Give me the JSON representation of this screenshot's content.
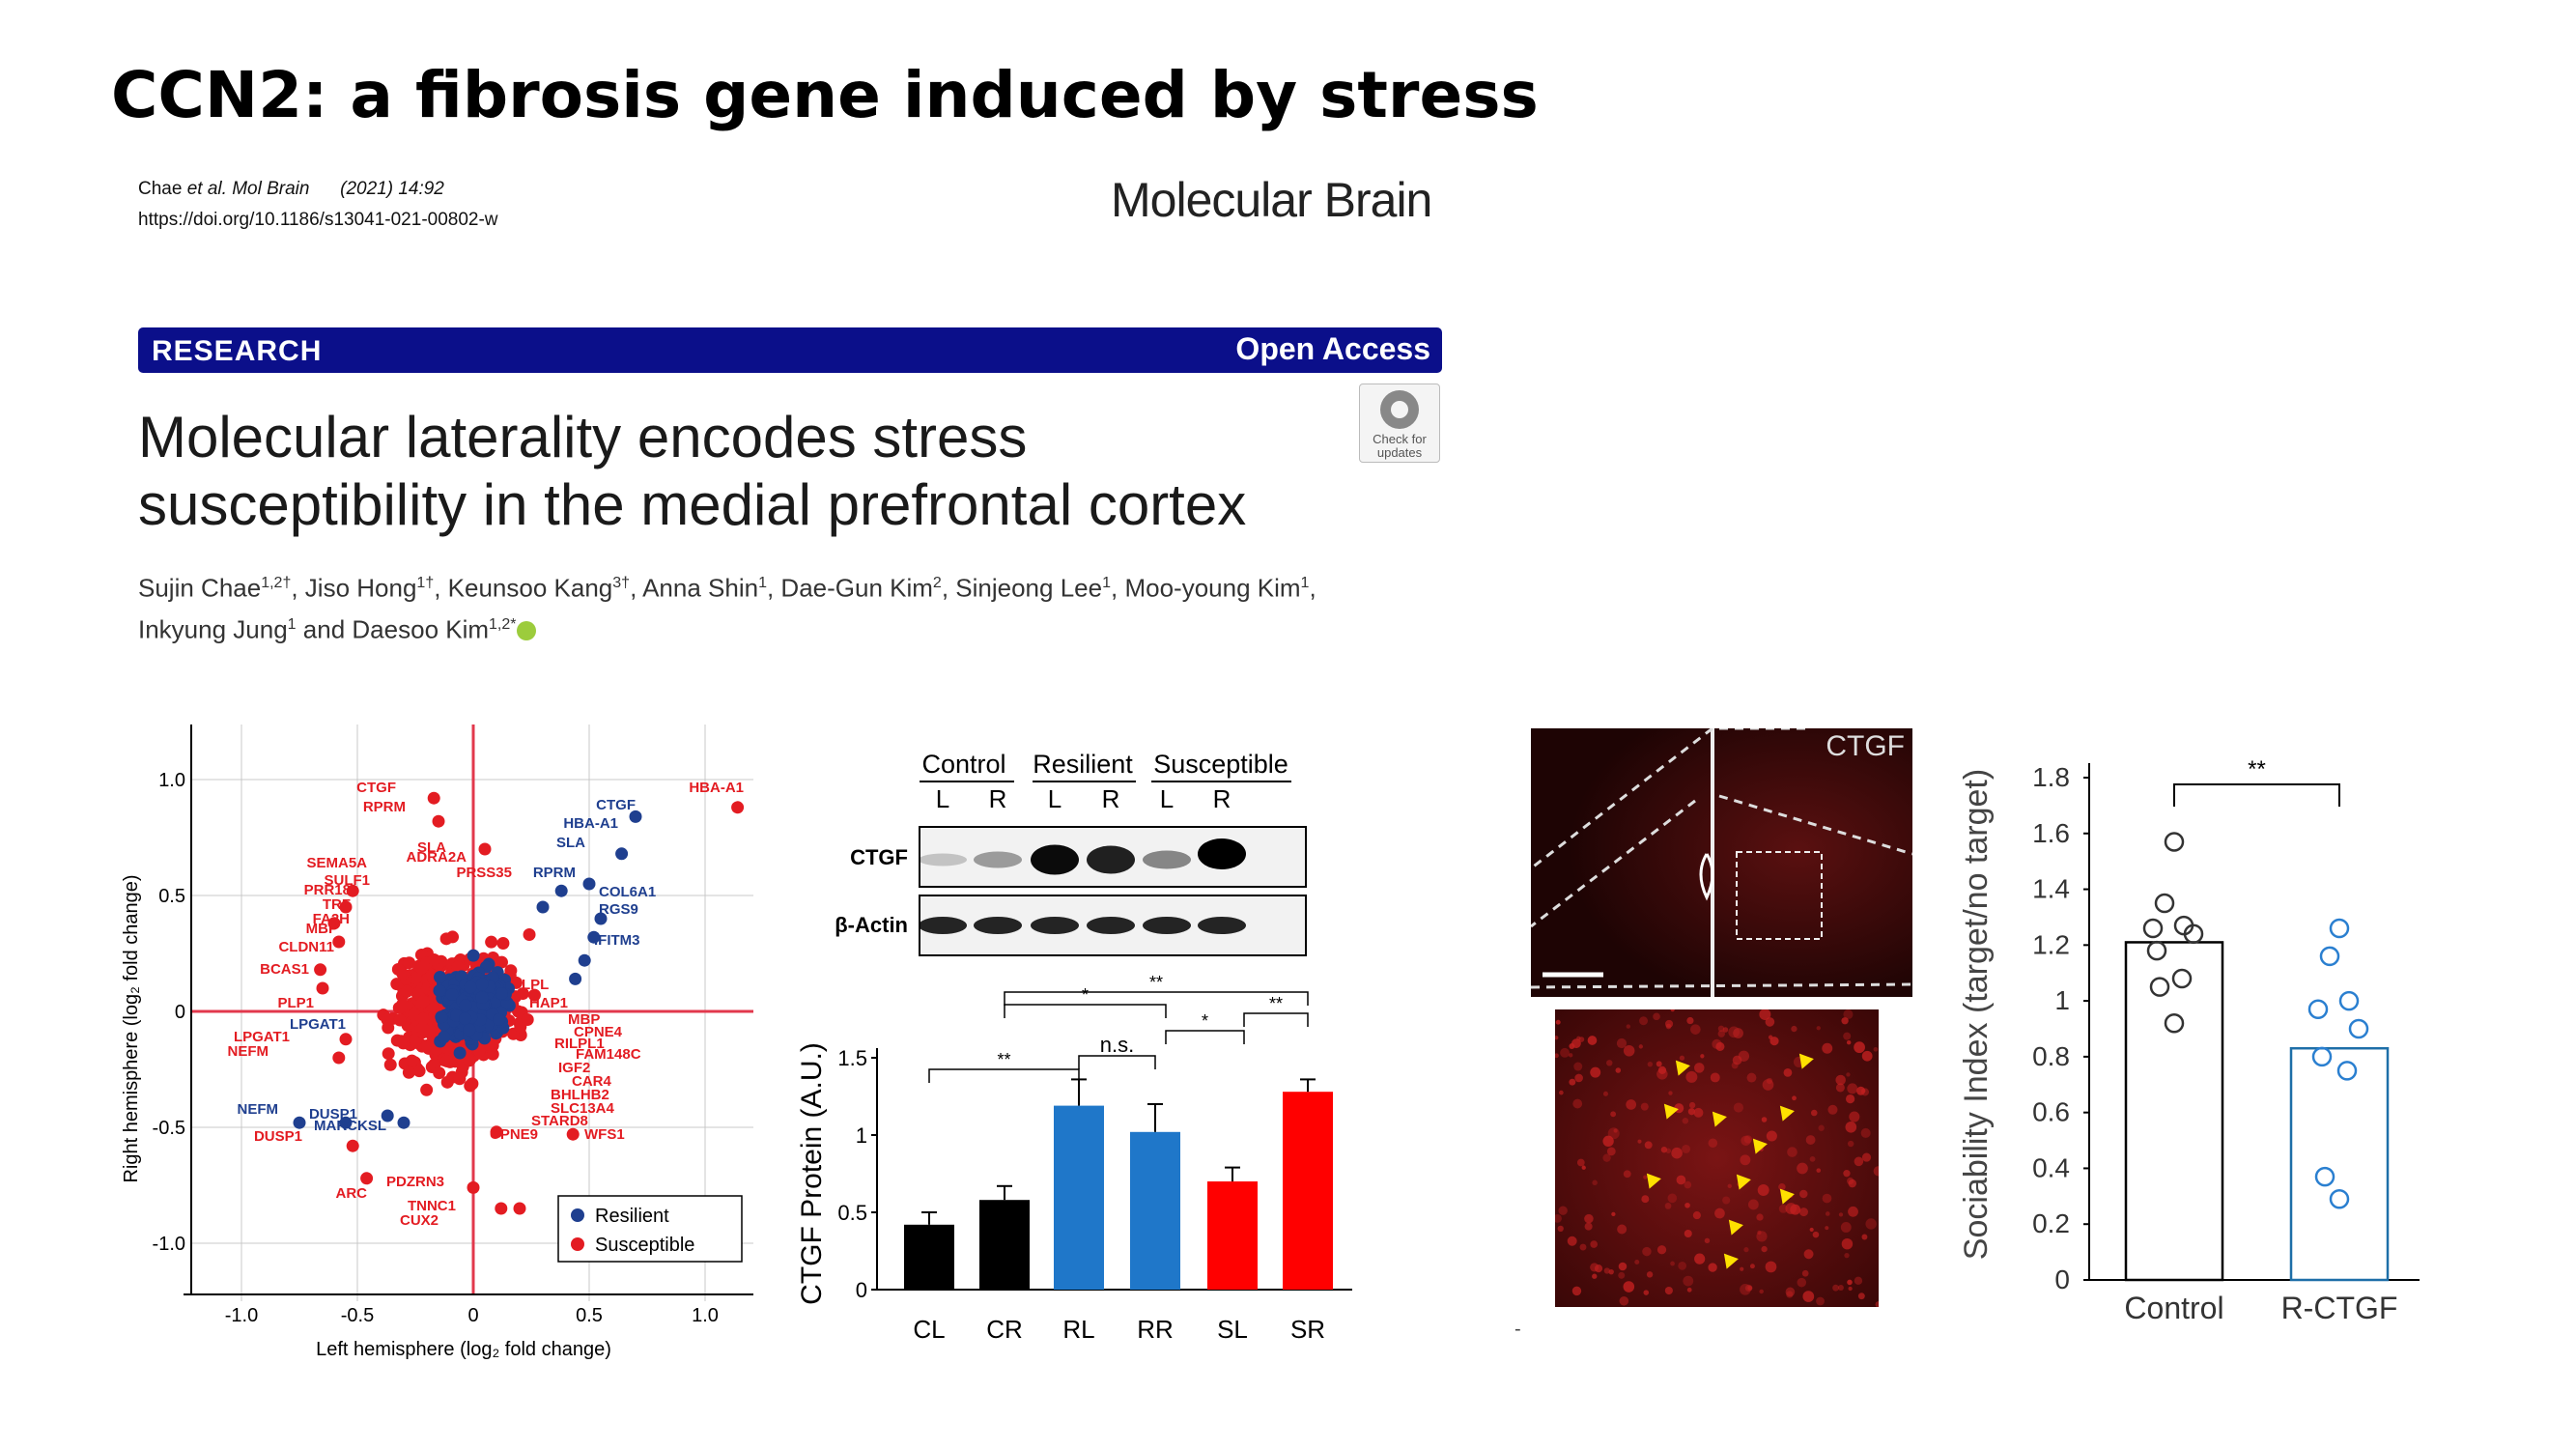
{
  "slide_title": "CCN2: a fibrosis gene induced by stress",
  "citation": {
    "authors": "Chae",
    "etal": "et al.",
    "journal_abbr": "Mol Brain",
    "year_vol": "(2021) 14:92",
    "doi": "https://doi.org/10.1186/s13041-021-00802-w"
  },
  "journal_name": "Molecular Brain",
  "banner": {
    "left": "RESEARCH",
    "right": "Open Access"
  },
  "check_updates": {
    "line1": "Check for",
    "line2": "updates"
  },
  "paper_title": {
    "line1": "Molecular laterality encodes stress",
    "line2": "susceptibility in the medial prefrontal cortex"
  },
  "authors_line1": [
    {
      "name": "Sujin Chae",
      "sup": "1,2†"
    },
    {
      "name": "Jiso Hong",
      "sup": "1†"
    },
    {
      "name": "Keunsoo Kang",
      "sup": "3†"
    },
    {
      "name": "Anna Shin",
      "sup": "1"
    },
    {
      "name": "Dae-Gun Kim",
      "sup": "2"
    },
    {
      "name": "Sinjeong Lee",
      "sup": "1"
    },
    {
      "name": "Moo-young Kim",
      "sup": "1"
    }
  ],
  "authors_line2": [
    {
      "name": "Inkyung Jung",
      "sup": "1"
    },
    {
      "name": "Daesoo Kim",
      "sup": "1,2*"
    }
  ],
  "and_word": "and",
  "colors": {
    "resilient": "#1f3f8f",
    "susceptible": "#e31c22",
    "bar_black": "#000000",
    "bar_blue": "#1f77c9",
    "bar_red": "#ff0000",
    "banner": "#0b0f8a",
    "scatter_lines": "#e2384c"
  },
  "scatter": {
    "xlabel": "Left hemisphere (log₂ fold change)",
    "ylabel": "Right hemisphere (log₂ fold change)",
    "xticks": [
      "-1.0",
      "-0.5",
      "0",
      "0.5",
      "1.0"
    ],
    "yticks": [
      "1.0",
      "0.5",
      "0",
      "-0.5",
      "-1.0"
    ],
    "legend": [
      {
        "label": "Resilient",
        "color": "#1f3f8f"
      },
      {
        "label": "Susceptible",
        "color": "#e31c22"
      }
    ],
    "labels_blue": [
      "CTGF",
      "HBA-A1",
      "SLA",
      "RPRM",
      "COL6A1",
      "RGS9",
      "IFITM3",
      "LPGAT1",
      "NEFM",
      "DUSP1",
      "MARCKSL"
    ],
    "labels_red": [
      "HBA-A1",
      "CTGF",
      "RPRM",
      "SLA",
      "ADRA2A",
      "PRSS35",
      "SEMA5A",
      "SULF1",
      "PRR18",
      "TRF",
      "FA2H",
      "MBP",
      "CLDN11",
      "BCAS1",
      "PLP1",
      "LPGAT1",
      "NEFM",
      "DUSP1",
      "ARC",
      "PDZRN3",
      "TNNC1",
      "CUX2",
      "HAP1",
      "LPL",
      "MBP",
      "CPNE4",
      "RILPL1",
      "FAM148C",
      "IGF2",
      "CAR4",
      "BHLHB2",
      "SLC13A4",
      "STARD8",
      "WFS1",
      "CPNE9"
    ]
  },
  "western": {
    "groups": [
      "Control",
      "Resilient",
      "Susceptible"
    ],
    "lanes": [
      "L",
      "R",
      "L",
      "R",
      "L",
      "R"
    ],
    "bands": [
      "CTGF",
      "β-Actin"
    ]
  },
  "chart_data": [
    {
      "type": "bar",
      "categories": [
        "CL",
        "CR",
        "RL",
        "RR",
        "SL",
        "SR"
      ],
      "values": [
        0.42,
        0.58,
        1.19,
        1.02,
        0.7,
        1.28
      ],
      "errors": [
        0.08,
        0.09,
        0.17,
        0.18,
        0.09,
        0.08
      ],
      "bar_colors": [
        "#000000",
        "#000000",
        "#1f77c9",
        "#1f77c9",
        "#ff0000",
        "#ff0000"
      ],
      "ylabel": "CTGF Protein (A.U.)",
      "yticks": [
        "0",
        "0.5",
        "1",
        "1.5"
      ],
      "ylim": [
        0,
        1.5
      ],
      "significance": [
        "**",
        "*",
        "n.s.",
        "*",
        "**",
        "**"
      ]
    },
    {
      "type": "bar",
      "categories": [
        "Control",
        "R-CTGF"
      ],
      "values": [
        1.21,
        0.83
      ],
      "ylabel": "Sociability Index (target/no target)",
      "yticks": [
        "0",
        "0.2",
        "0.4",
        "0.6",
        "0.8",
        "1",
        "1.2",
        "1.4",
        "1.6",
        "1.8"
      ],
      "ylim": [
        0,
        1.8
      ],
      "significance": "**",
      "points": [
        [
          1.57,
          1.35,
          1.27,
          1.26,
          1.24,
          1.18,
          1.08,
          1.05,
          0.92
        ],
        [
          1.26,
          1.16,
          1.0,
          0.97,
          0.9,
          0.8,
          0.75,
          0.37,
          0.29
        ]
      ]
    }
  ],
  "micro_label": "CTGF",
  "dash": "-"
}
